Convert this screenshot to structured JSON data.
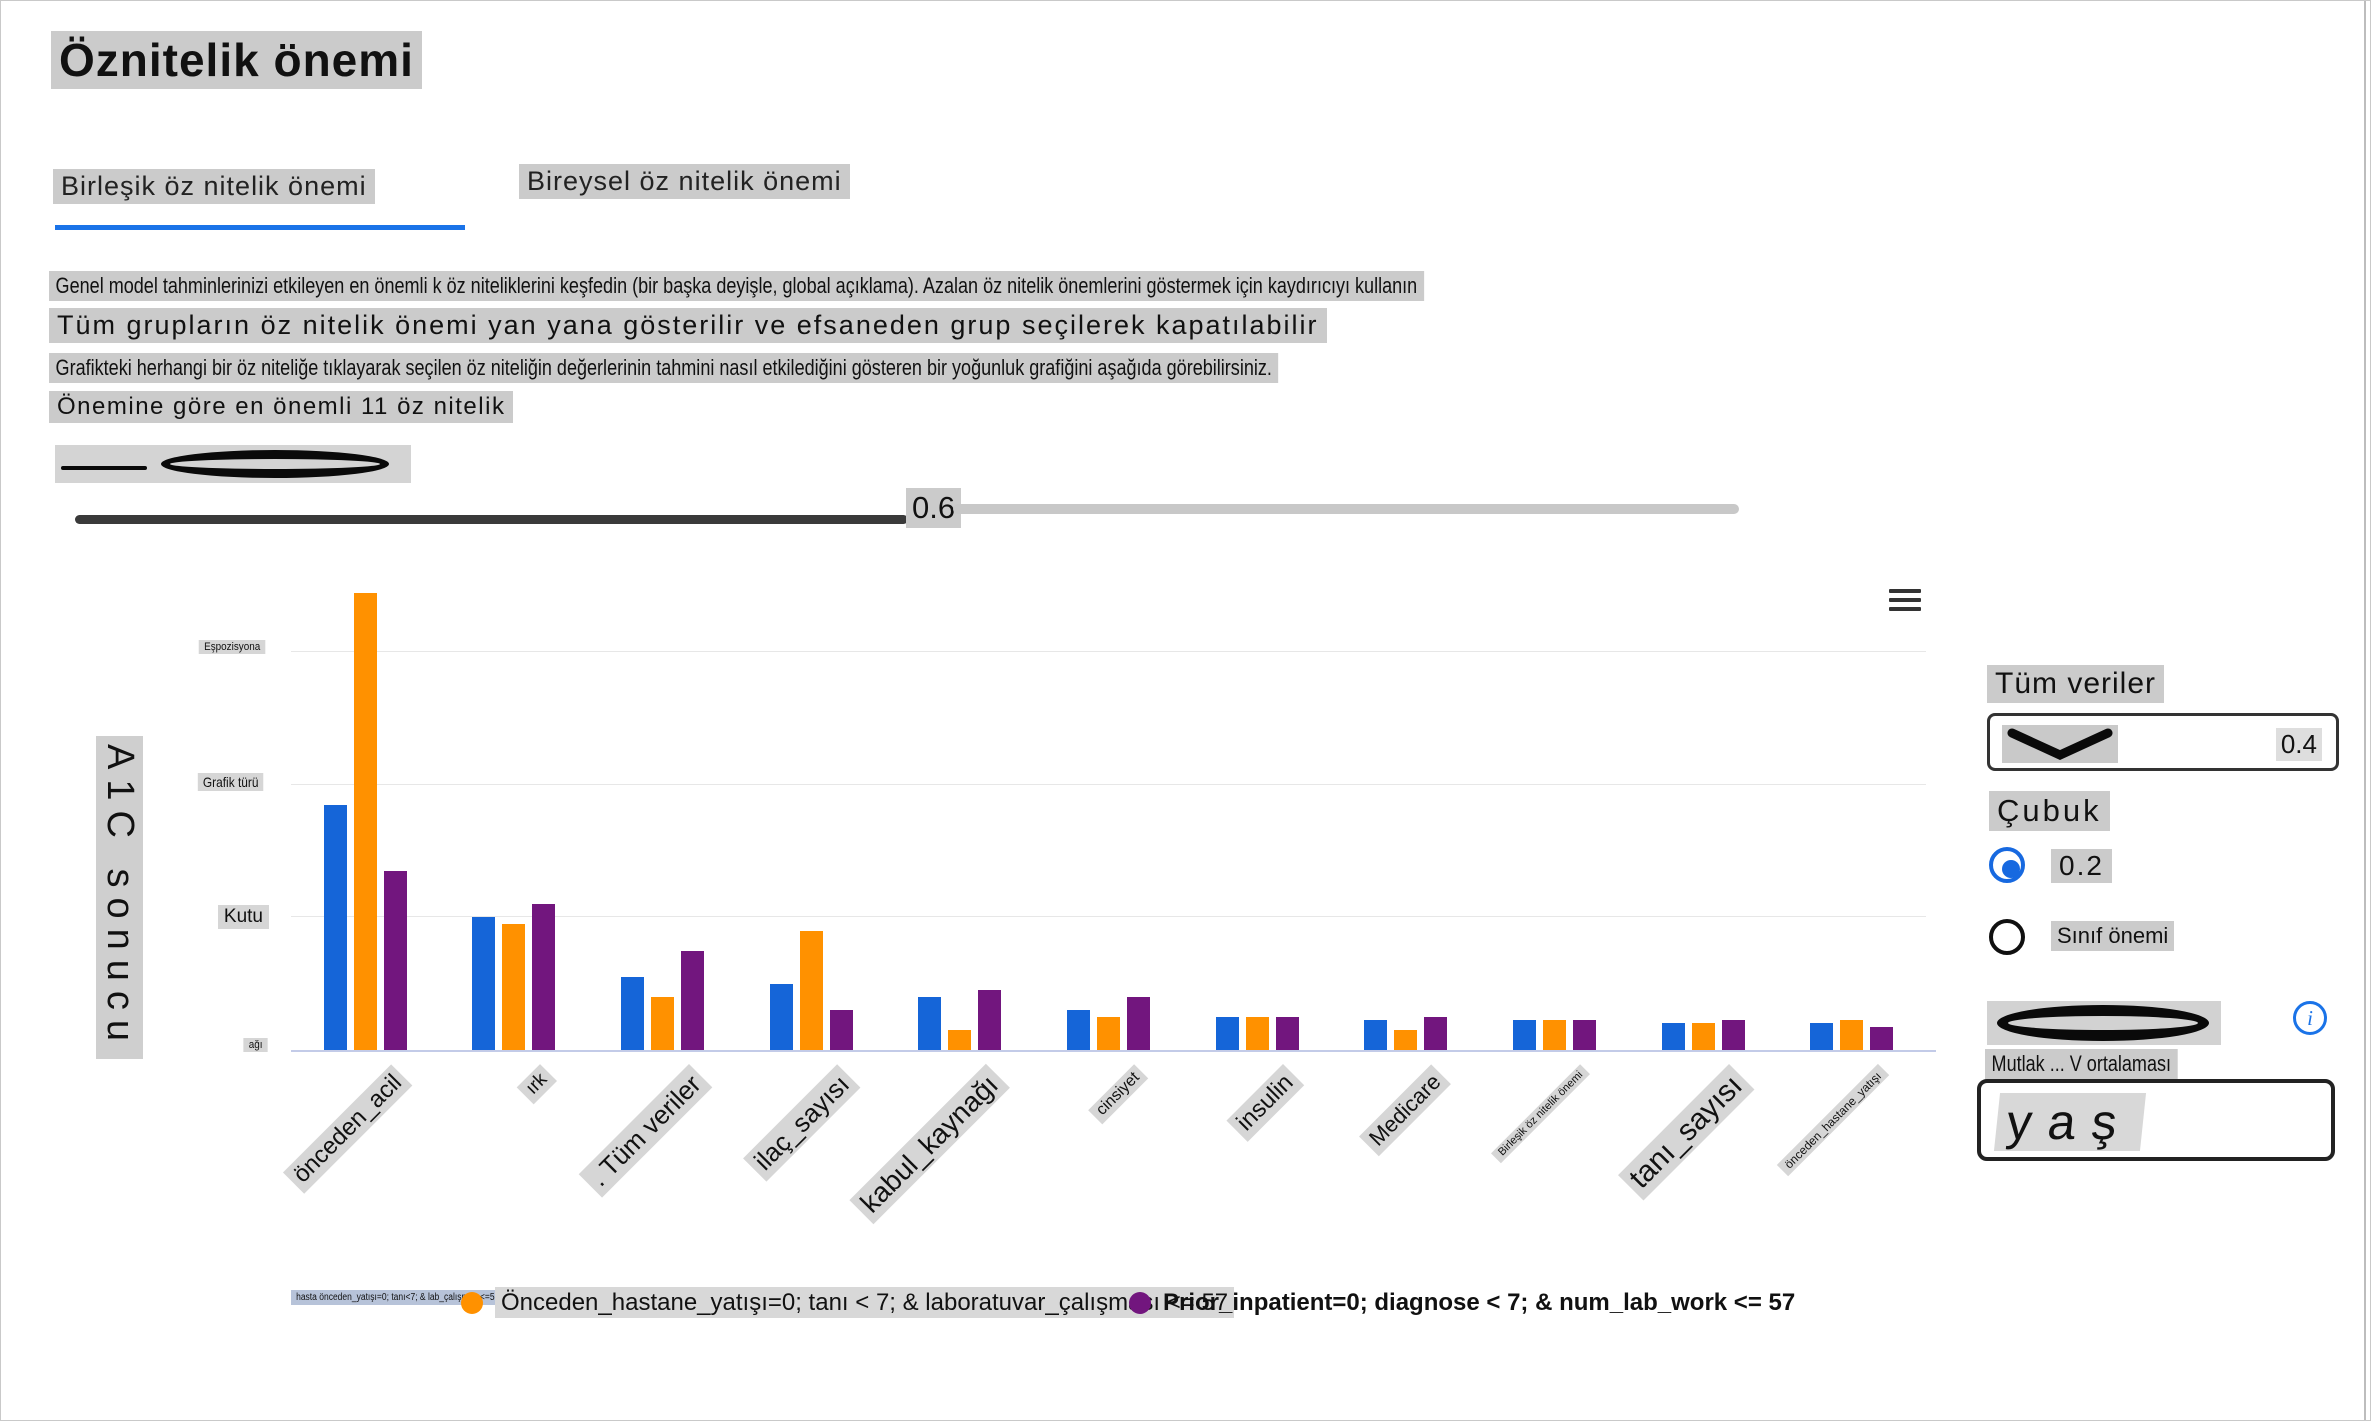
{
  "page": {
    "title": "Öznitelik önemi"
  },
  "tabs": [
    {
      "label": "Birleşik öz nitelik önemi",
      "active": true
    },
    {
      "label": "Bireysel öz nitelik önemi",
      "active": false
    }
  ],
  "description": {
    "line1": "Genel model tahminlerinizi etkileyen en önemli k öz niteliklerini keşfedin (bir başka deyişle, global açıklama). Azalan öz nitelik önemlerini göstermek için kaydırıcıyı kullanın",
    "line2": "Tüm grupların öz nitelik önemi yan yana gösterilir ve efsaneden grup seçilerek kapatılabilir",
    "line3": "Grafikteki herhangi bir öz niteliğe tıklayarak seçilen öz niteliğin değerlerinin tahmini nasıl etkilediğini gösteren bir yoğunluk grafiğini aşağıda görebilirsiniz.",
    "line4": "Önemine göre en önemli 11 öz nitelik"
  },
  "slider": {
    "value": "0.6"
  },
  "chart_data": {
    "type": "bar",
    "title": "",
    "xlabel": "",
    "ylabel": "A1C sonucu",
    "ylim": [
      0,
      0.7
    ],
    "grid": true,
    "legend_position": "bottom",
    "categories": [
      "önceden_acil",
      "ırk",
      ". Tüm veriler",
      "ilaç_sayısı",
      "kabul_kaynağı",
      "cinsiyet",
      "insulin",
      "Medicare",
      "Birleşik öz nitelik önemi",
      "tanı_sayısı",
      "önceden_hastane_yatışı"
    ],
    "series": [
      {
        "name": "hasta önceden_yatışı=0; tanı<7; & lab_çalışması<=57",
        "color": "#1565d8",
        "values": [
          0.37,
          0.2,
          0.11,
          0.1,
          0.08,
          0.06,
          0.05,
          0.045,
          0.045,
          0.04,
          0.04
        ]
      },
      {
        "name": "Önceden_hastane_yatışı=0; tanı < 7; & laboratuvar_çalışması <= 57",
        "color": "#ff9100",
        "values": [
          0.69,
          0.19,
          0.08,
          0.18,
          0.03,
          0.05,
          0.05,
          0.03,
          0.045,
          0.04,
          0.045
        ]
      },
      {
        "name": "Prior_inpatient=0; diagnose < 7; & num_lab_work <= 57",
        "color": "#72167e",
        "values": [
          0.27,
          0.22,
          0.15,
          0.06,
          0.09,
          0.08,
          0.05,
          0.05,
          0.045,
          0.045,
          0.035
        ]
      }
    ],
    "ytick_values": [
      0.6,
      0.4,
      0.2,
      0
    ],
    "ytick_labels": [
      "Eşpozisyona",
      "Grafik türü",
      "Kutu",
      "ağı"
    ]
  },
  "panel": {
    "all_data_label": "Tüm veriler",
    "dropdown1_value": "0.4",
    "bar_label": "Çubuk",
    "radio_options": [
      {
        "label": "0.2",
        "selected": true
      },
      {
        "label": "Sınıf önemi",
        "selected": false
      }
    ],
    "average_label": "Mutlak ... V ortalaması",
    "dropdown2_value": "yaş"
  },
  "icons": {
    "chart_menu": "hamburger-menu-icon",
    "dropdown": "chevron-down-icon",
    "info": "info-icon"
  },
  "colors": {
    "accent_blue": "#1a73e8",
    "series_blue": "#1565d8",
    "series_orange": "#ff9100",
    "series_purple": "#72167e",
    "highlight_gray": "#cbcbcb",
    "legend1_highlight": "#b7c3d9"
  }
}
